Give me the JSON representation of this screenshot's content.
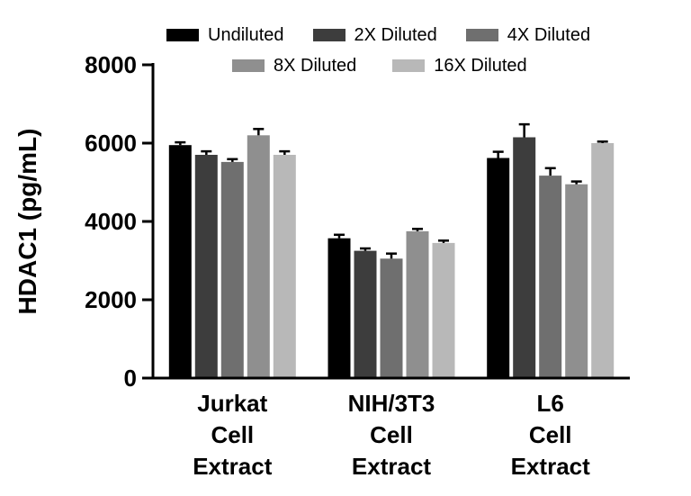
{
  "chart_data": {
    "type": "bar",
    "title": "",
    "xlabel": "",
    "ylabel": "HDAC1 (pg/mL)",
    "ylim": [
      0,
      8000
    ],
    "yticks": [
      0,
      2000,
      4000,
      6000,
      8000
    ],
    "grid": false,
    "error_bars": true,
    "legend_position": "top",
    "categories": [
      "Jurkat Cell Extract",
      "NIH/3T3 Cell Extract",
      "L6 Cell Extract"
    ],
    "category_label_lines": [
      [
        "Jurkat",
        "Cell",
        "Extract"
      ],
      [
        "NIH/3T3",
        "Cell",
        "Extract"
      ],
      [
        "L6",
        "Cell",
        "Extract"
      ]
    ],
    "series": [
      {
        "name": "Undiluted",
        "color": "#000000",
        "values": [
          5950,
          3570,
          5620
        ],
        "errors": [
          70,
          90,
          160
        ]
      },
      {
        "name": "2X Diluted",
        "color": "#3d3d3d",
        "values": [
          5700,
          3250,
          6150
        ],
        "errors": [
          90,
          60,
          330
        ]
      },
      {
        "name": "4X Diluted",
        "color": "#6f6f6f",
        "values": [
          5520,
          3050,
          5170
        ],
        "errors": [
          70,
          130,
          190
        ]
      },
      {
        "name": "8X Diluted",
        "color": "#8f8f8f",
        "values": [
          6200,
          3750,
          4950
        ],
        "errors": [
          160,
          60,
          70
        ]
      },
      {
        "name": "16X Diluted",
        "color": "#b8b8b8",
        "values": [
          5700,
          3450,
          6000
        ],
        "errors": [
          90,
          60,
          40
        ]
      }
    ],
    "legend_rows": [
      3,
      2
    ],
    "axis_color": "#000000",
    "error_bar_color": "#000000"
  }
}
